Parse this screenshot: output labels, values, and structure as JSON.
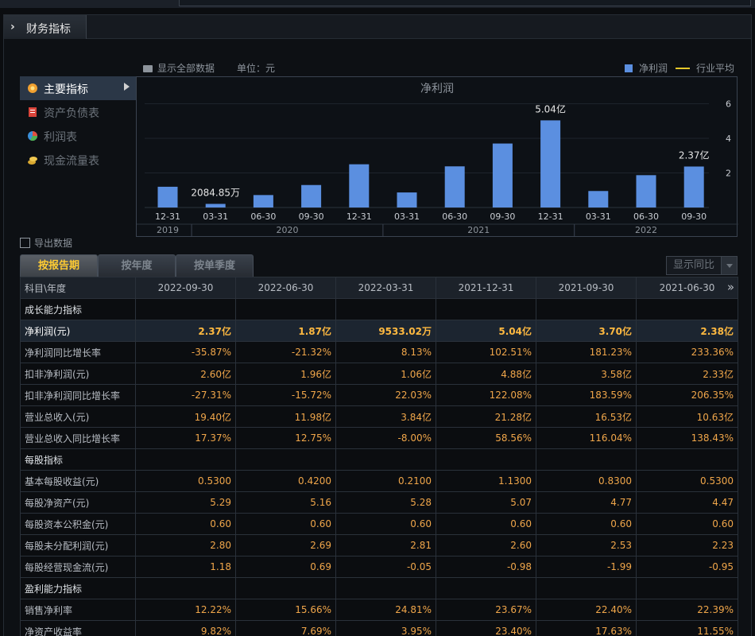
{
  "panel": {
    "title": "财务指标"
  },
  "chart_header": {
    "show_all": "显示全部数据",
    "unit": "单位：元",
    "legend_bar": "净利润",
    "legend_line": "行业平均"
  },
  "menu": {
    "items": [
      {
        "label": "主要指标",
        "icon": "asterisk-icon"
      },
      {
        "label": "资产负债表",
        "icon": "document-icon"
      },
      {
        "label": "利润表",
        "icon": "pie-icon"
      },
      {
        "label": "现金流量表",
        "icon": "coins-icon"
      }
    ]
  },
  "chart_data": {
    "type": "bar",
    "title": "净利润",
    "categories": [
      "12-31",
      "03-31",
      "06-30",
      "09-30",
      "12-31",
      "03-31",
      "06-30",
      "09-30",
      "12-31",
      "03-31",
      "06-30",
      "09-30"
    ],
    "years": [
      {
        "label": "2019",
        "from": 0,
        "to": 0
      },
      {
        "label": "2020",
        "from": 1,
        "to": 4
      },
      {
        "label": "2021",
        "from": 5,
        "to": 8
      },
      {
        "label": "2022",
        "from": 9,
        "to": 11
      }
    ],
    "series": [
      {
        "name": "净利润",
        "values": [
          1.2,
          0.2085,
          0.72,
          1.3,
          2.5,
          0.87,
          2.38,
          3.7,
          5.04,
          0.9533,
          1.87,
          2.37
        ]
      }
    ],
    "data_labels": [
      {
        "index": 1,
        "text": "2084.85万"
      },
      {
        "index": 8,
        "text": "5.04亿"
      },
      {
        "index": 11,
        "text": "2.37亿"
      }
    ],
    "yticks": [
      2,
      4,
      6
    ],
    "ylim": [
      0,
      6.3
    ],
    "grid": true,
    "legend": "top-right",
    "colors": {
      "bar": "#5b8fe0",
      "industry_avg": "#e6c82a"
    }
  },
  "export_label": "导出数据",
  "tabs": [
    "按报告期",
    "按年度",
    "按单季度"
  ],
  "yoy_label": "显示同比",
  "table": {
    "corner": "科目\\年度",
    "columns": [
      "2022-09-30",
      "2022-06-30",
      "2022-03-31",
      "2021-12-31",
      "2021-09-30",
      "2021-06-30"
    ],
    "rows": [
      {
        "type": "section",
        "name": "成长能力指标",
        "values": []
      },
      {
        "type": "hl",
        "name": "净利润(元)",
        "values": [
          "2.37亿",
          "1.87亿",
          "9533.02万",
          "5.04亿",
          "3.70亿",
          "2.38亿"
        ]
      },
      {
        "type": "row",
        "name": "净利润同比增长率",
        "values": [
          "-35.87%",
          "-21.32%",
          "8.13%",
          "102.51%",
          "181.23%",
          "233.36%"
        ]
      },
      {
        "type": "row",
        "name": "扣非净利润(元)",
        "values": [
          "2.60亿",
          "1.96亿",
          "1.06亿",
          "4.88亿",
          "3.58亿",
          "2.33亿"
        ]
      },
      {
        "type": "row",
        "name": "扣非净利润同比增长率",
        "values": [
          "-27.31%",
          "-15.72%",
          "22.03%",
          "122.08%",
          "183.59%",
          "206.35%"
        ]
      },
      {
        "type": "row",
        "name": "营业总收入(元)",
        "values": [
          "19.40亿",
          "11.98亿",
          "3.84亿",
          "21.28亿",
          "16.53亿",
          "10.63亿"
        ]
      },
      {
        "type": "row",
        "name": "营业总收入同比增长率",
        "values": [
          "17.37%",
          "12.75%",
          "-8.00%",
          "58.56%",
          "116.04%",
          "138.43%"
        ]
      },
      {
        "type": "section",
        "name": "每股指标",
        "values": []
      },
      {
        "type": "row",
        "name": "基本每股收益(元)",
        "values": [
          "0.5300",
          "0.4200",
          "0.2100",
          "1.1300",
          "0.8300",
          "0.5300"
        ]
      },
      {
        "type": "row",
        "name": "每股净资产(元)",
        "values": [
          "5.29",
          "5.16",
          "5.28",
          "5.07",
          "4.77",
          "4.47"
        ]
      },
      {
        "type": "row",
        "name": "每股资本公积金(元)",
        "values": [
          "0.60",
          "0.60",
          "0.60",
          "0.60",
          "0.60",
          "0.60"
        ]
      },
      {
        "type": "row",
        "name": "每股未分配利润(元)",
        "values": [
          "2.80",
          "2.69",
          "2.81",
          "2.60",
          "2.53",
          "2.23"
        ]
      },
      {
        "type": "row",
        "name": "每股经营现金流(元)",
        "values": [
          "1.18",
          "0.69",
          "-0.05",
          "-0.98",
          "-1.99",
          "-0.95"
        ]
      },
      {
        "type": "section",
        "name": "盈利能力指标",
        "values": []
      },
      {
        "type": "row",
        "name": "销售净利率",
        "values": [
          "12.22%",
          "15.66%",
          "24.81%",
          "23.67%",
          "22.40%",
          "22.39%"
        ]
      },
      {
        "type": "row",
        "name": "净资产收益率",
        "values": [
          "9.82%",
          "7.69%",
          "3.95%",
          "23.40%",
          "17.63%",
          "11.55%"
        ]
      }
    ]
  }
}
